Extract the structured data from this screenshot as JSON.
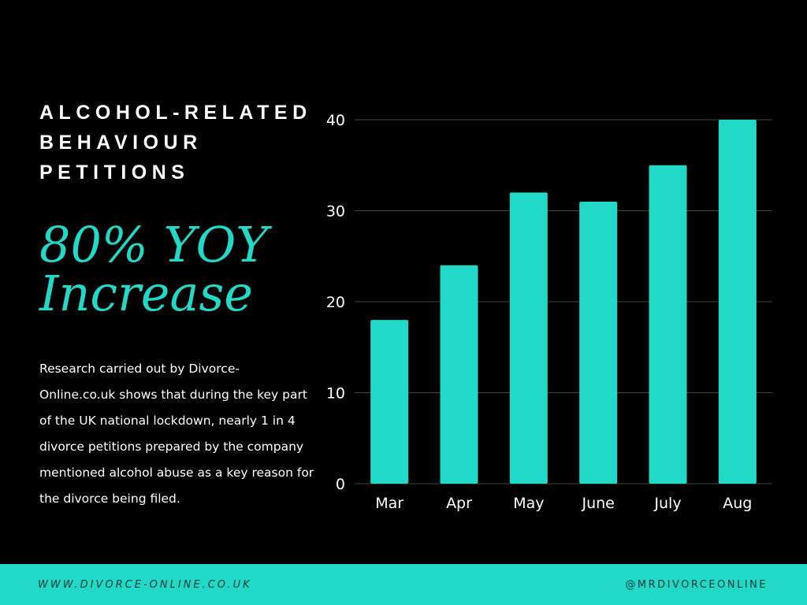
{
  "heading": {
    "line1": "ALCOHOL-RELATED",
    "line2": "BEHAVIOUR",
    "line3": "PETITIONS"
  },
  "stat": {
    "line1": "80% YOY",
    "line2": "Increase"
  },
  "description": "Research carried out by Divorce-Online.co.uk shows that during the key part of the UK national lockdown, nearly 1 in 4 divorce petitions prepared by the company mentioned alcohol abuse as a key reason for the divorce being filed.",
  "footer": {
    "website": "WWW.DIVORCE-ONLINE.CO.UK",
    "handle": "@MRDIVORCEONLINE"
  },
  "colors": {
    "accent": "#22d9c8",
    "background": "#000000",
    "text": "#ffffff",
    "grid": "#444444"
  },
  "chart_data": {
    "type": "bar",
    "categories": [
      "Mar",
      "Apr",
      "May",
      "June",
      "July",
      "Aug"
    ],
    "values": [
      18,
      24,
      32,
      31,
      35,
      40
    ],
    "yticks": [
      0,
      10,
      20,
      30,
      40
    ],
    "ylim": [
      0,
      40
    ],
    "grid": true,
    "title": "",
    "xlabel": "",
    "ylabel": ""
  }
}
